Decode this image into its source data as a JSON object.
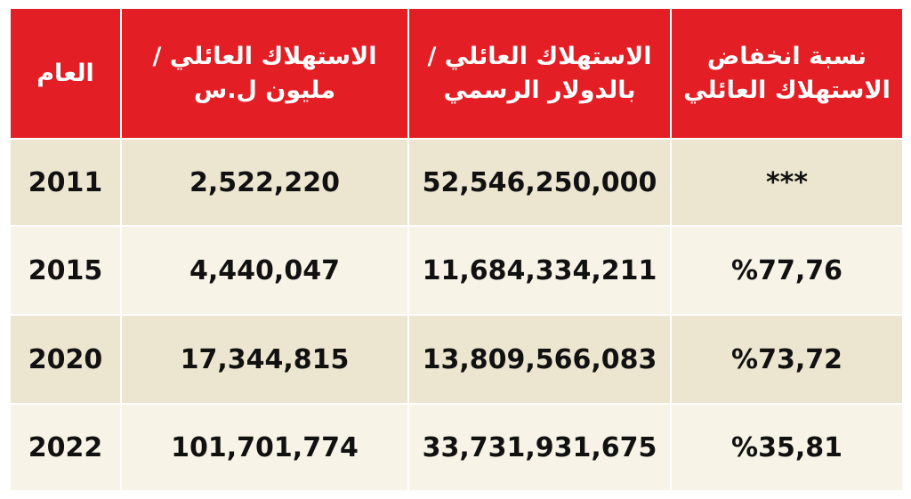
{
  "table": {
    "header": [
      [
        "نسبة انخفاض",
        "الاستهلاك العائلي"
      ],
      [
        "الاستهلاك العائلي /",
        "بالدولار الرسمي"
      ],
      [
        "الاستهلاك العائلي /",
        "مليون ل.س"
      ],
      [
        "العام"
      ]
    ],
    "rows": [
      [
        "***",
        "52,546,250,000",
        "2,522,220",
        "2011"
      ],
      [
        "%77,76",
        "11,684,334,211",
        "4,440,047",
        "2015"
      ],
      [
        "%73,72",
        "13,809,566,083",
        "17,344,815",
        "2020"
      ],
      [
        "%35,81",
        "33,731,931,675",
        "101,701,774",
        "2022"
      ]
    ]
  }
}
